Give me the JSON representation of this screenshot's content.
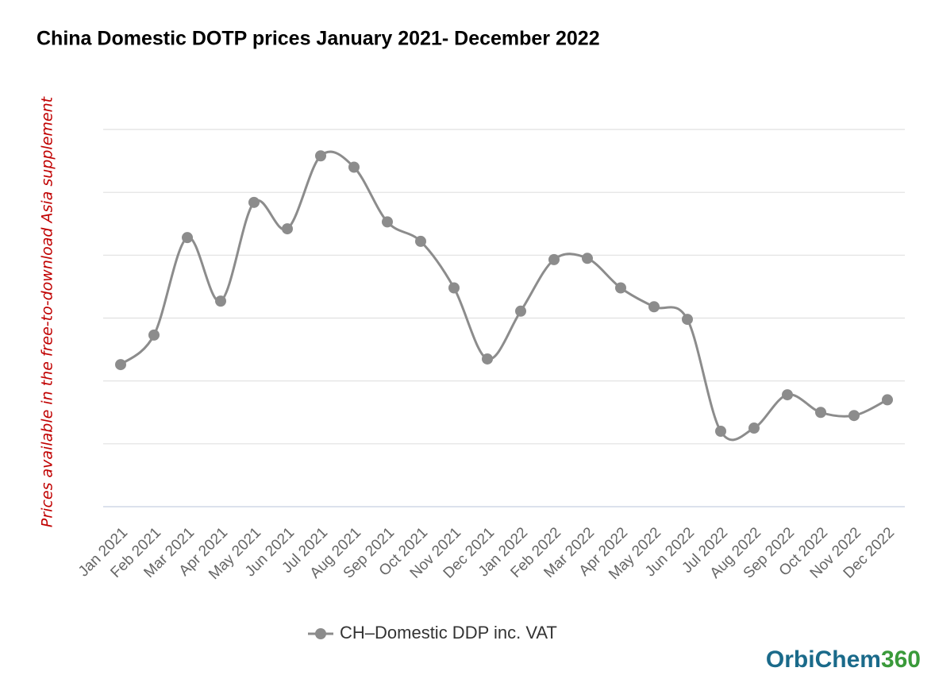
{
  "chart_data": {
    "type": "line",
    "title": "China Domestic DOTP prices January 2021- December 2022",
    "side_note": "Prices available in the free-to-download Asia supplement",
    "logo": {
      "main": "OrbiChem",
      "accent": "360"
    },
    "categories": [
      "Jan 2021",
      "Feb 2021",
      "Mar 2021",
      "Apr 2021",
      "May 2021",
      "Jun 2021",
      "Jul 2021",
      "Aug 2021",
      "Sep 2021",
      "Oct 2021",
      "Nov 2021",
      "Dec 2021",
      "Jan 2022",
      "Feb 2022",
      "Mar 2022",
      "Apr 2022",
      "May 2022",
      "Jun 2022",
      "Jul 2022",
      "Aug 2022",
      "Sep 2022",
      "Oct 2022",
      "Nov 2022",
      "Dec 2022"
    ],
    "series": [
      {
        "name": "CH–Domestic DDP inc. VAT",
        "color": "#8c8c8c",
        "values": [
          2.26,
          2.73,
          4.28,
          3.27,
          4.84,
          4.42,
          5.58,
          5.4,
          4.53,
          4.22,
          3.48,
          2.35,
          3.11,
          3.93,
          3.95,
          3.48,
          3.18,
          2.98,
          1.2,
          1.25,
          1.78,
          1.5,
          1.45,
          1.7
        ]
      }
    ],
    "ylim": [
      0,
      6
    ],
    "yticks": [
      0,
      1,
      2,
      3,
      4,
      5,
      6
    ],
    "ytick_labels": false,
    "grid": true,
    "smooth": true,
    "legend": "bottom"
  }
}
